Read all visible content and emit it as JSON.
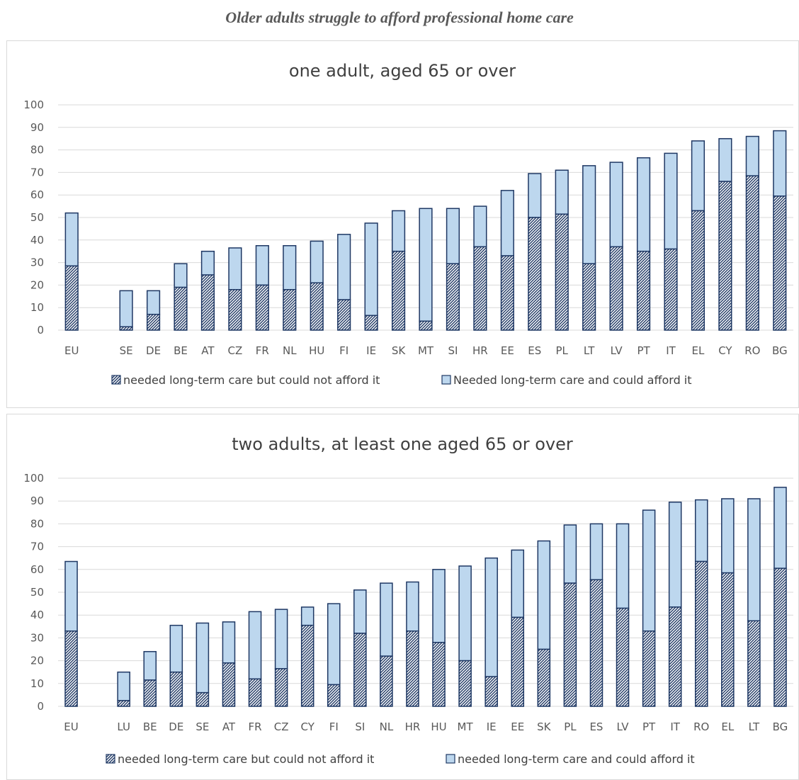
{
  "title": "Older adults struggle to afford professional home care",
  "colors": {
    "afford": "#bdd7ee",
    "hatch": "#1f3864",
    "grid": "#d9d9d9"
  },
  "chart_data": [
    {
      "type": "bar",
      "stacked": true,
      "title": "one adult, aged 65 or over",
      "ylim": [
        0,
        100
      ],
      "yticks": [
        0,
        10,
        20,
        30,
        40,
        50,
        60,
        70,
        80,
        90,
        100
      ],
      "grid": true,
      "legend_position": "bottom",
      "categories": [
        "EU",
        "",
        "SE",
        "DE",
        "BE",
        "AT",
        "CZ",
        "FR",
        "NL",
        "HU",
        "FI",
        "IE",
        "SK",
        "MT",
        "SI",
        "HR",
        "EE",
        "ES",
        "PL",
        "LT",
        "LV",
        "PT",
        "IT",
        "EL",
        "CY",
        "RO",
        "BG"
      ],
      "series": [
        {
          "name": "needed long-term care but could not afford it",
          "pattern": "hatch",
          "values": [
            28.5,
            null,
            1.5,
            7,
            19,
            24.5,
            18,
            20,
            18,
            21,
            13.5,
            6.5,
            35,
            4,
            29.5,
            37,
            33,
            50,
            51.5,
            29.5,
            37,
            35,
            36,
            53,
            66,
            68.5,
            59.5
          ]
        },
        {
          "name": "Needed long-term care and could afford it",
          "pattern": "solid",
          "values": [
            23.5,
            null,
            16,
            10.5,
            10.5,
            10.5,
            18.5,
            17.5,
            19.5,
            18.5,
            29,
            41,
            18,
            50,
            24.5,
            18,
            29,
            19.5,
            19.5,
            43.5,
            37.5,
            41.5,
            42.5,
            31,
            19,
            17.5,
            29
          ]
        }
      ]
    },
    {
      "type": "bar",
      "stacked": true,
      "title": "two adults, at least one aged 65 or over",
      "ylim": [
        0,
        100
      ],
      "yticks": [
        0,
        10,
        20,
        30,
        40,
        50,
        60,
        70,
        80,
        90,
        100
      ],
      "grid": true,
      "legend_position": "bottom",
      "categories": [
        "EU",
        "",
        "LU",
        "BE",
        "DE",
        "SE",
        "AT",
        "FR",
        "CZ",
        "CY",
        "FI",
        "SI",
        "NL",
        "HR",
        "HU",
        "MT",
        "IE",
        "EE",
        "SK",
        "PL",
        "ES",
        "LV",
        "PT",
        "IT",
        "RO",
        "EL",
        "LT",
        "BG"
      ],
      "series": [
        {
          "name": "needed long-term care but could not afford it",
          "pattern": "hatch",
          "values": [
            33,
            null,
            2.5,
            11.5,
            15,
            6,
            19,
            12,
            16.5,
            35.5,
            9.5,
            32,
            22,
            33,
            28,
            20,
            13,
            39,
            25,
            54,
            55.5,
            43,
            33,
            43.5,
            63.5,
            58.5,
            37.5,
            60.5
          ]
        },
        {
          "name": "needed long-term care and could afford it",
          "pattern": "solid",
          "values": [
            30.5,
            null,
            12.5,
            12.5,
            20.5,
            30.5,
            18,
            29.5,
            26,
            8,
            35.5,
            19,
            32,
            21.5,
            32,
            41.5,
            52,
            29.5,
            47.5,
            25.5,
            24.5,
            37,
            53,
            46,
            27,
            32.5,
            53.5,
            35.5
          ]
        }
      ]
    }
  ]
}
